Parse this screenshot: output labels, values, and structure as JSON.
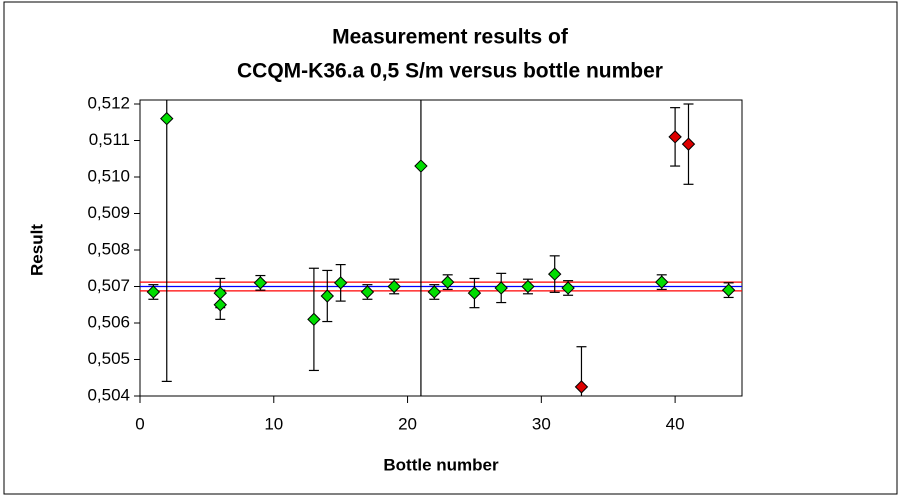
{
  "chart_data": {
    "type": "scatter",
    "title": [
      "Measurement results of",
      "CCQM-K36.a 0,5 S/m versus bottle number"
    ],
    "x_label": "Bottle number",
    "y_label": "Result",
    "xlim": [
      0,
      45
    ],
    "xticks": [
      0,
      10,
      20,
      30,
      40
    ],
    "ylim": [
      0.504,
      0.512
    ],
    "yticks": [
      {
        "value": 0.504,
        "label": "0,504"
      },
      {
        "value": 0.505,
        "label": "0,505"
      },
      {
        "value": 0.506,
        "label": "0,506"
      },
      {
        "value": 0.507,
        "label": "0,507"
      },
      {
        "value": 0.508,
        "label": "0,508"
      },
      {
        "value": 0.509,
        "label": "0,509"
      },
      {
        "value": 0.51,
        "label": "0,510"
      },
      {
        "value": 0.511,
        "label": "0,511"
      },
      {
        "value": 0.512,
        "label": "0,512"
      }
    ],
    "reference_lines": [
      {
        "value": 0.507,
        "color": "#0000ff"
      },
      {
        "value": 0.50712,
        "color": "#ff0000"
      },
      {
        "value": 0.50688,
        "color": "#ff0000"
      }
    ],
    "series": [
      {
        "color": "#00dd00",
        "x": [
          1,
          2,
          6,
          6,
          9,
          13,
          14,
          15,
          17,
          19,
          21,
          22,
          23,
          25,
          27,
          29,
          31,
          32,
          39,
          44
        ],
        "values": [
          0.50685,
          0.5116,
          0.5065,
          0.50682,
          0.5071,
          0.5061,
          0.50674,
          0.5071,
          0.50685,
          0.507,
          0.5103,
          0.50685,
          0.50712,
          0.50682,
          0.50696,
          0.507,
          0.50734,
          0.50696,
          0.50712,
          0.5069
        ],
        "errors": [
          0.0002,
          0.0072,
          0.0004,
          0.0004,
          0.0002,
          0.0014,
          0.0007,
          0.0005,
          0.0002,
          0.0002,
          0.0075,
          0.0002,
          0.0002,
          0.0004,
          0.0004,
          0.0002,
          0.0005,
          0.0002,
          0.0002,
          0.0002
        ]
      },
      {
        "color": "#dd0000",
        "x": [
          33,
          40,
          41
        ],
        "values": [
          0.50425,
          0.5111,
          0.5109
        ],
        "errors": [
          0.0011,
          0.0008,
          0.0011
        ]
      }
    ]
  }
}
